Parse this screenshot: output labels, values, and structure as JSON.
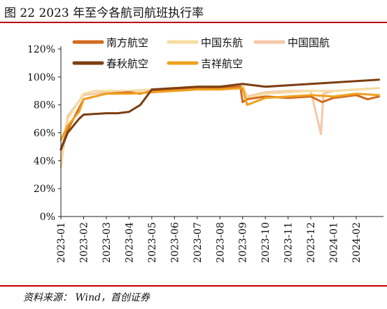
{
  "title": "图 22 2023 年至今各航司航班执行率",
  "source": "资料来源： Wind，首创证券",
  "colors": {
    "rule": "#c0000a"
  },
  "chart_data": {
    "type": "line",
    "title": "",
    "xlabel": "",
    "ylabel": "",
    "ylim": [
      0,
      120
    ],
    "yticks": [
      "0%",
      "20%",
      "40%",
      "60%",
      "80%",
      "100%",
      "120%"
    ],
    "xticks": [
      "2023-01",
      "2023-02",
      "2023-03",
      "2023-04",
      "2023-05",
      "2023-06",
      "2023-07",
      "2023-08",
      "2023-09",
      "2023-10",
      "2023-11",
      "2023-12",
      "2024-01",
      "2024-02"
    ],
    "x_unit": "month index (0 = 2023-01)",
    "grid": false,
    "legend_position": "top",
    "series": [
      {
        "name": "南方航空",
        "color": "#d2691e",
        "x": [
          0,
          0.3,
          1,
          1.5,
          2,
          3,
          3.5,
          4,
          5,
          6,
          7,
          7.9,
          8,
          8.2,
          9,
          10,
          11,
          11.5,
          12,
          13,
          13.5,
          14
        ],
        "values": [
          48,
          62,
          84,
          86,
          88,
          89,
          88,
          90,
          91,
          92,
          92,
          93,
          82,
          84,
          86,
          85,
          86,
          82,
          85,
          87,
          84,
          86
        ]
      },
      {
        "name": "中国东航",
        "color": "#f6dca0",
        "x": [
          0,
          0.3,
          1,
          1.5,
          2,
          3,
          4,
          5,
          6,
          7,
          8,
          8.2,
          9,
          10,
          11,
          12,
          13,
          14
        ],
        "values": [
          35,
          70,
          88,
          90,
          90,
          90,
          91,
          92,
          93,
          93,
          94,
          85,
          88,
          89,
          90,
          90,
          91,
          92
        ]
      },
      {
        "name": "中国国航",
        "color": "#f4c8a8",
        "x": [
          0,
          0.3,
          1,
          2,
          3,
          4,
          5,
          6,
          7,
          8,
          8.2,
          9,
          10,
          11,
          11.45,
          11.55,
          12,
          13,
          14
        ],
        "values": [
          40,
          72,
          87,
          89,
          90,
          91,
          92,
          93,
          93,
          94,
          86,
          89,
          90,
          90,
          59,
          88,
          90,
          91,
          92
        ]
      },
      {
        "name": "春秋航空",
        "color": "#7b3f12",
        "x": [
          0,
          0.3,
          0.8,
          1,
          2,
          2.5,
          3,
          3.5,
          4,
          5,
          6,
          7,
          8,
          8.5,
          9,
          10,
          11,
          12,
          13,
          14
        ],
        "values": [
          48,
          60,
          70,
          73,
          74,
          74,
          75,
          80,
          91,
          92,
          93,
          93,
          95,
          94,
          93,
          94,
          95,
          96,
          97,
          98
        ]
      },
      {
        "name": "吉祥航空",
        "color": "#f0a020",
        "x": [
          0,
          0.3,
          0.8,
          1,
          2,
          3,
          4,
          5,
          6,
          7,
          8,
          8.2,
          9,
          10,
          11,
          12,
          13,
          14
        ],
        "values": [
          55,
          65,
          75,
          84,
          88,
          88,
          89,
          90,
          91,
          91,
          92,
          80,
          85,
          86,
          87,
          86,
          88,
          87
        ]
      }
    ]
  }
}
